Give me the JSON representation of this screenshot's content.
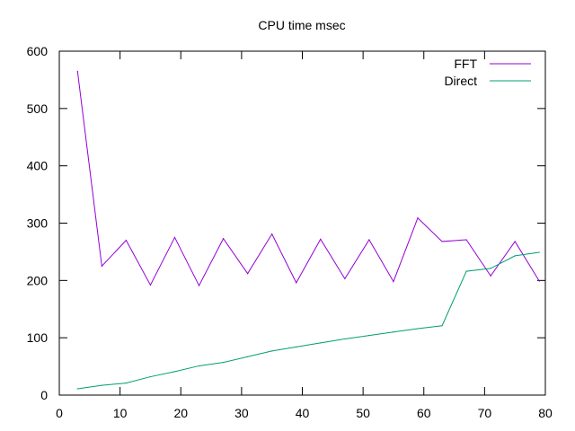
{
  "chart_data": {
    "type": "line",
    "title": "CPU time msec",
    "xlabel": "",
    "ylabel": "",
    "xlim": [
      0,
      80
    ],
    "ylim": [
      0,
      600
    ],
    "xticks": [
      0,
      10,
      20,
      30,
      40,
      50,
      60,
      70,
      80
    ],
    "yticks": [
      0,
      100,
      200,
      300,
      400,
      500,
      600
    ],
    "grid": false,
    "legend_position": "top-right",
    "series": [
      {
        "name": "FFT",
        "color": "#9400d3",
        "x": [
          3,
          7,
          11,
          15,
          19,
          23,
          27,
          31,
          35,
          39,
          43,
          47,
          51,
          55,
          59,
          63,
          67,
          71,
          75,
          79
        ],
        "y": [
          565,
          225,
          270,
          192,
          275,
          191,
          273,
          212,
          281,
          196,
          272,
          203,
          271,
          198,
          309,
          268,
          271,
          208,
          268,
          199
        ]
      },
      {
        "name": "Direct",
        "color": "#009e73",
        "x": [
          3,
          7,
          11,
          15,
          19,
          23,
          27,
          31,
          35,
          39,
          43,
          47,
          51,
          55,
          59,
          63,
          67,
          71,
          75,
          79
        ],
        "y": [
          11,
          17,
          21,
          32,
          41,
          51,
          57,
          67,
          77,
          84,
          91,
          98,
          104,
          110,
          116,
          121,
          216,
          221,
          243,
          249
        ]
      }
    ]
  }
}
